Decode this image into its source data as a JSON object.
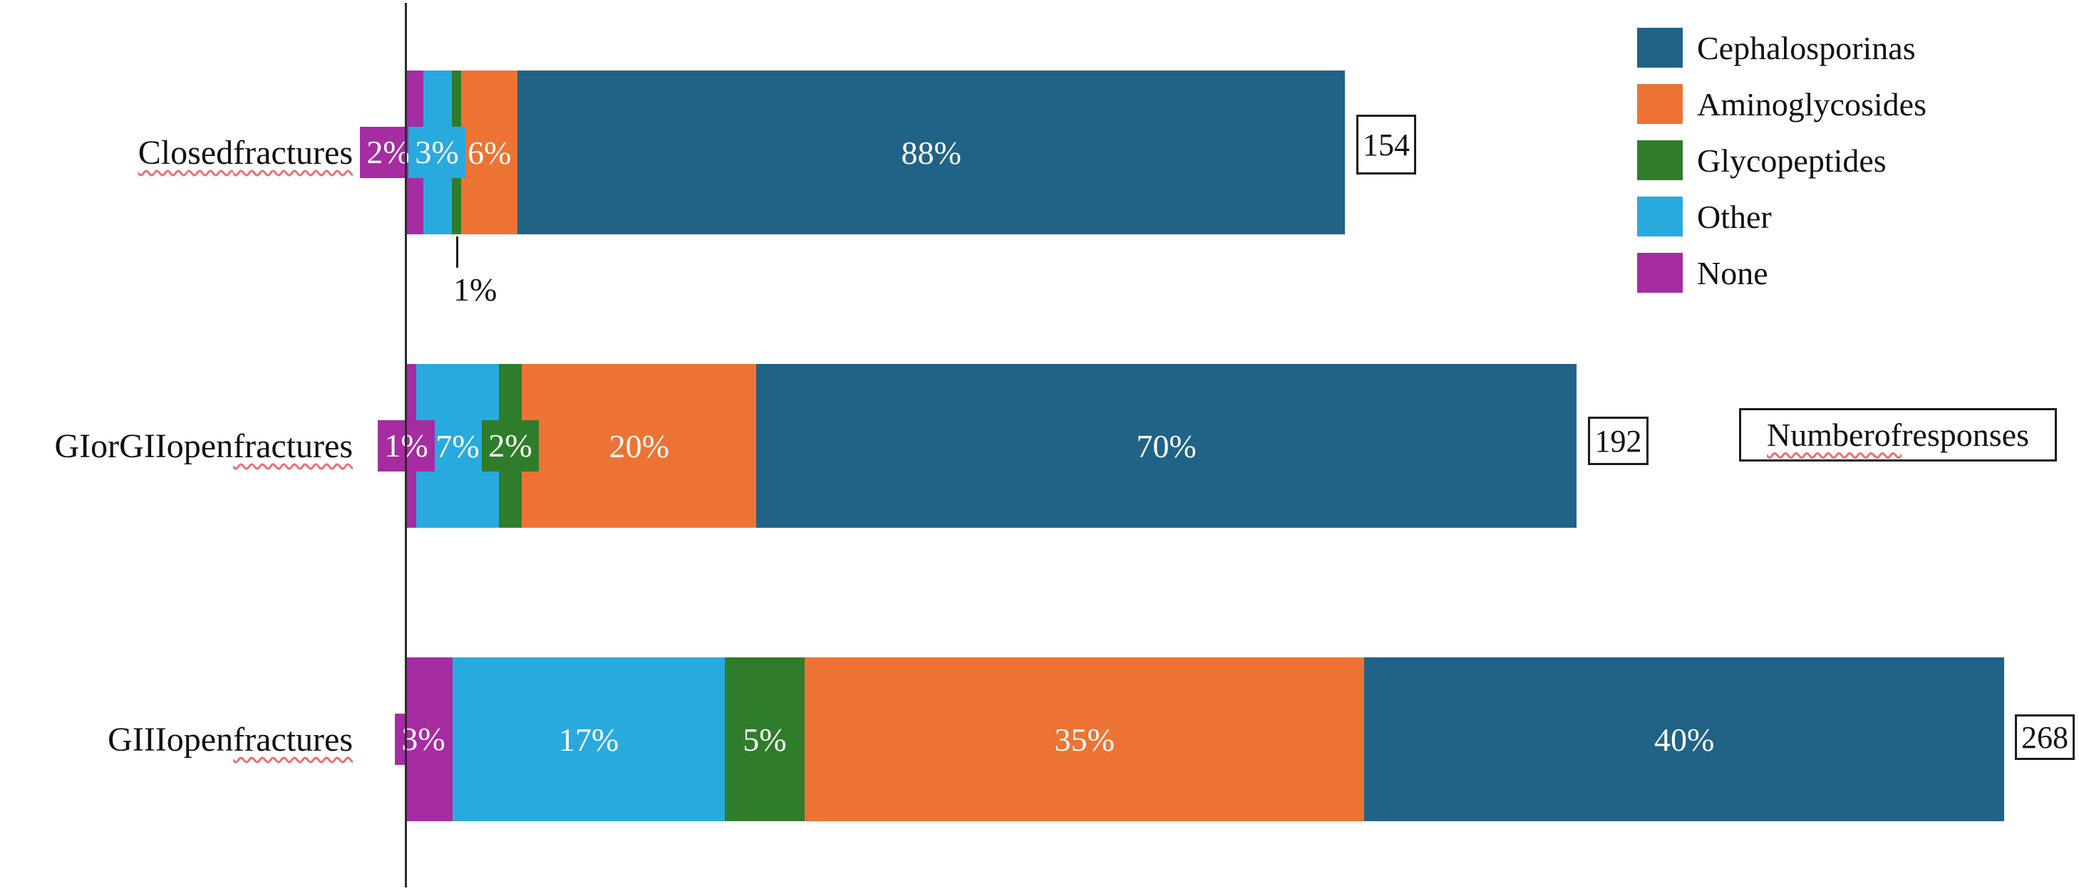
{
  "colors": {
    "cephalosporinas": "#206386",
    "aminoglycosides": "#ED7334",
    "glycopeptides": "#2F7D2B",
    "other": "#29AADF",
    "none": "#A62CA2",
    "axis": "#2B2B2B",
    "text": "#111111",
    "bar_label_text": "#FFFFFF",
    "box_border": "#1A1A1A",
    "squiggle": "#F26D6D",
    "background": "#FFFFFF"
  },
  "legend": {
    "position": "top-right",
    "items": [
      {
        "label": "Cephalosporinas",
        "color": "cephalosporinas"
      },
      {
        "label": "Aminoglycosides",
        "color": "aminoglycosides"
      },
      {
        "label": "Glycopeptides",
        "color": "glycopeptides"
      },
      {
        "label": "Other",
        "color": "other"
      },
      {
        "label": "None",
        "color": "none"
      }
    ]
  },
  "responses_box_label": {
    "text": "Number of responses",
    "squiggle_words": [
      "Number",
      "of"
    ]
  },
  "chart_data": {
    "type": "bar",
    "orientation": "horizontal_stacked",
    "value_unit": "percent",
    "bar_length_rule": "bar total length proportional to number of responses",
    "grid": false,
    "series_order_left_to_right": [
      "None",
      "Other",
      "Glycopeptides",
      "Aminoglycosides",
      "Cephalosporinas"
    ],
    "categories": [
      "Closed fractures",
      "GI or GII open fractures",
      "GIII open fractures"
    ],
    "rows": [
      {
        "category": "Closed fractures",
        "squiggle_words": [
          "Closed",
          "fractures"
        ],
        "responses": 154,
        "segments": [
          {
            "series": "None",
            "pct": 2,
            "label": "2%",
            "label_style": "boxed"
          },
          {
            "series": "Other",
            "pct": 3,
            "label": "3%",
            "label_style": "boxed"
          },
          {
            "series": "Glycopeptides",
            "pct": 1,
            "label": "1%",
            "label_style": "below"
          },
          {
            "series": "Aminoglycosides",
            "pct": 6,
            "label": "6%",
            "label_style": "inside"
          },
          {
            "series": "Cephalosporinas",
            "pct": 88,
            "label": "88%",
            "label_style": "inside"
          }
        ]
      },
      {
        "category": "GI or GII open fractures",
        "squiggle_words": [
          "fractures"
        ],
        "responses": 192,
        "segments": [
          {
            "series": "None",
            "pct": 1,
            "label": "1%",
            "label_style": "boxed"
          },
          {
            "series": "Other",
            "pct": 7,
            "label": "7%",
            "label_style": "inside"
          },
          {
            "series": "Glycopeptides",
            "pct": 2,
            "label": "2%",
            "label_style": "boxed"
          },
          {
            "series": "Aminoglycosides",
            "pct": 20,
            "label": "20%",
            "label_style": "inside"
          },
          {
            "series": "Cephalosporinas",
            "pct": 70,
            "label": "70%",
            "label_style": "inside"
          }
        ]
      },
      {
        "category": "GIII open fractures",
        "squiggle_words": [
          "fractures"
        ],
        "responses": 268,
        "segments": [
          {
            "series": "None",
            "pct": 3,
            "label": "3%",
            "label_style": "boxed"
          },
          {
            "series": "Other",
            "pct": 17,
            "label": "17%",
            "label_style": "inside"
          },
          {
            "series": "Glycopeptides",
            "pct": 5,
            "label": "5%",
            "label_style": "inside"
          },
          {
            "series": "Aminoglycosides",
            "pct": 35,
            "label": "35%",
            "label_style": "inside"
          },
          {
            "series": "Cephalosporinas",
            "pct": 40,
            "label": "40%",
            "label_style": "inside"
          }
        ]
      }
    ],
    "annotation": {
      "text": "1%",
      "series": "Glycopeptides",
      "category": "Closed fractures",
      "placement": "below first bar with leader line"
    }
  }
}
